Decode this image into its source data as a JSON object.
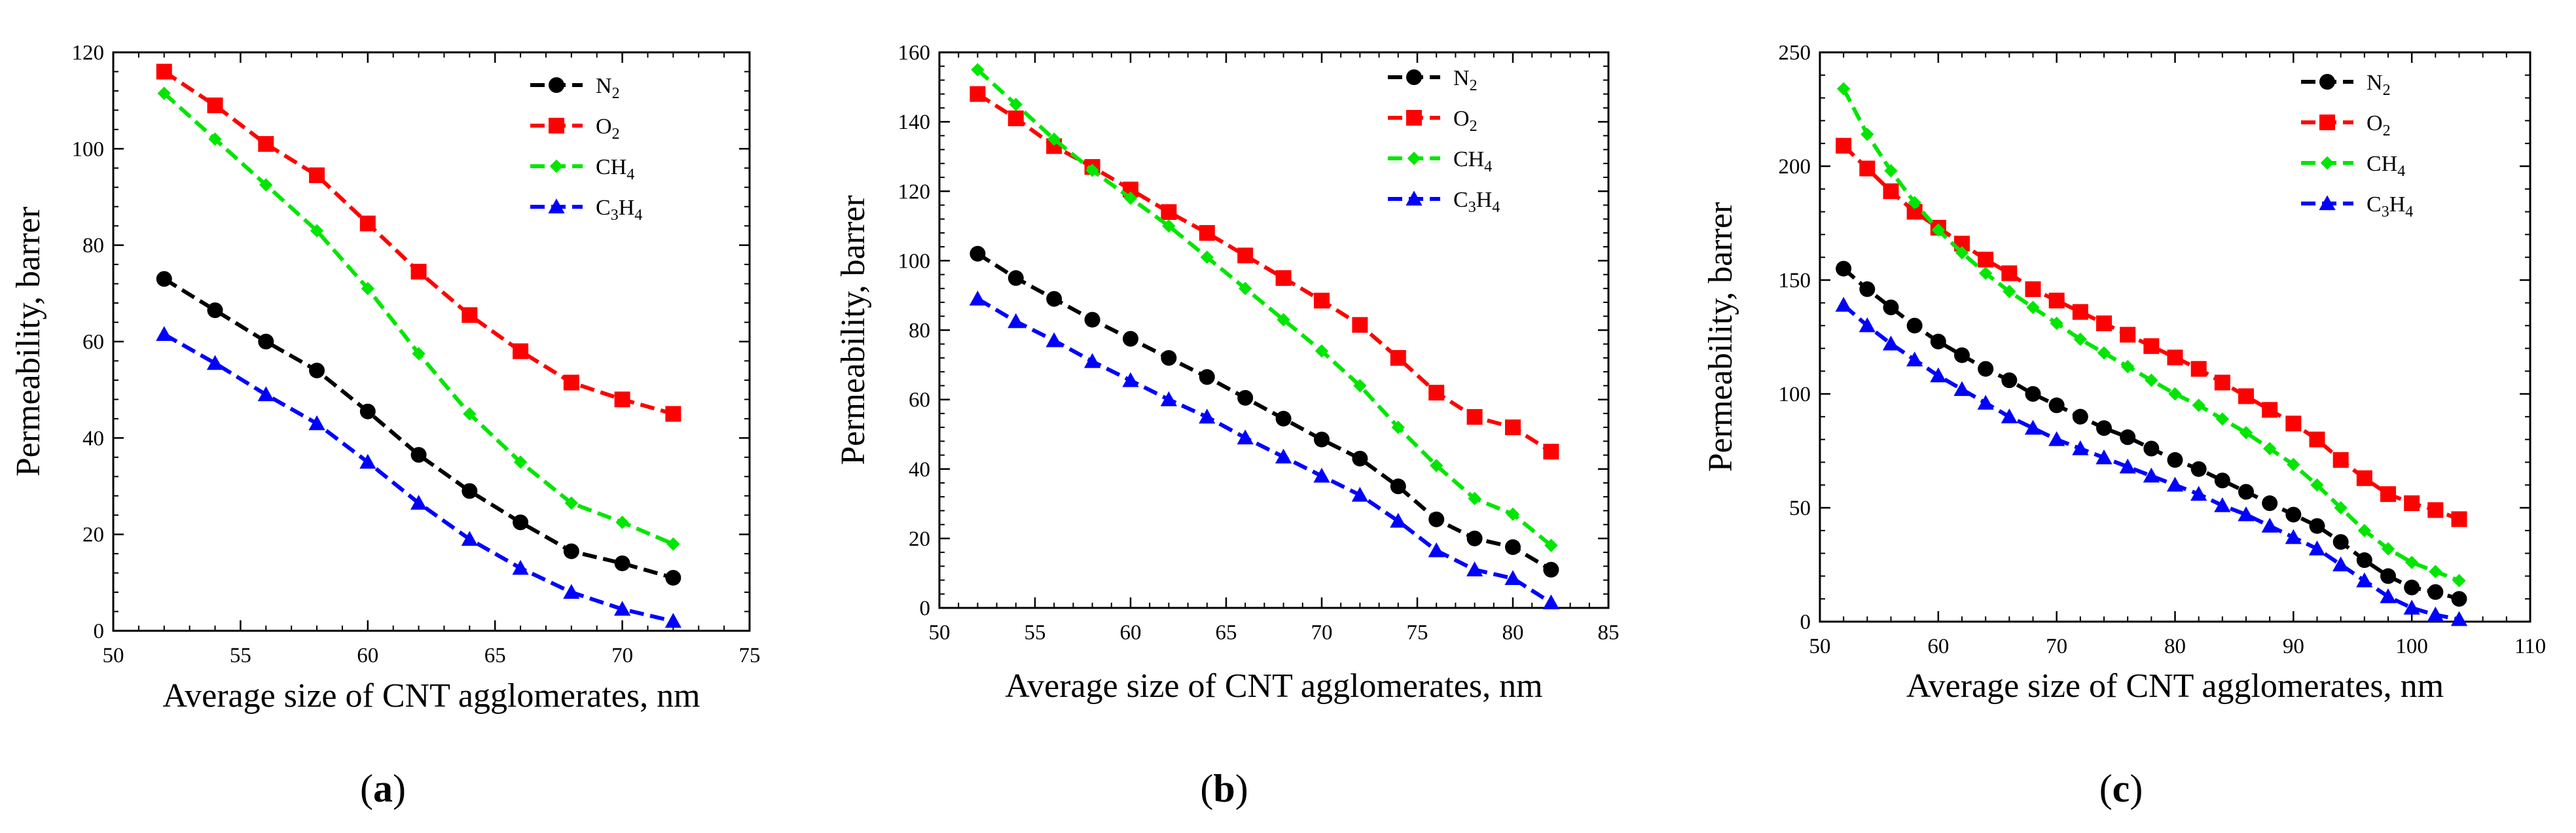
{
  "chart_data": [
    {
      "type": "line",
      "panel_label": "(a)",
      "xlabel": "Average size of CNT agglomerates, nm",
      "ylabel": "Permeability, barrer",
      "xlim": [
        50,
        75
      ],
      "ylim": [
        0,
        120
      ],
      "xticks": [
        50,
        55,
        60,
        65,
        70,
        75
      ],
      "yticks": [
        0,
        20,
        40,
        60,
        80,
        100,
        120
      ],
      "x": [
        52,
        54,
        56,
        58,
        60,
        62,
        64,
        66,
        68,
        70,
        72
      ],
      "legend_position": "top-right",
      "series": [
        {
          "name": "N2",
          "label_main": "N",
          "label_sub": "2",
          "color": "#000000",
          "marker": "circle",
          "values": [
            73,
            66.5,
            60,
            54,
            45.5,
            36.5,
            29,
            22.5,
            16.5,
            14,
            11
          ]
        },
        {
          "name": "O2",
          "label_main": "O",
          "label_sub": "2",
          "color": "#ff0000",
          "marker": "square",
          "values": [
            116,
            109,
            101,
            94.5,
            84.5,
            74.5,
            65.5,
            58,
            51.5,
            48,
            45
          ]
        },
        {
          "name": "CH4",
          "label_main": "CH",
          "label_sub": "4",
          "color": "#00e600",
          "marker": "diamond",
          "values": [
            111.5,
            102,
            92.5,
            83,
            71,
            57.5,
            45,
            35,
            26.5,
            22.5,
            18
          ]
        },
        {
          "name": "C3H4",
          "label_main": "C",
          "label_sub": "3",
          "label_main2": "H",
          "label_sub2": "4",
          "color": "#0000ff",
          "marker": "triangle",
          "values": [
            61.5,
            55.5,
            49,
            43,
            35,
            26.5,
            19,
            13,
            8,
            4.5,
            2
          ]
        }
      ]
    },
    {
      "type": "line",
      "panel_label": "(b)",
      "xlabel": "Average size of CNT agglomerates, nm",
      "ylabel": "Permeability, barrer",
      "xlim": [
        50,
        85
      ],
      "ylim": [
        0,
        160
      ],
      "xticks": [
        50,
        55,
        60,
        65,
        70,
        75,
        80,
        85
      ],
      "yticks": [
        0,
        20,
        40,
        60,
        80,
        100,
        120,
        140,
        160
      ],
      "x": [
        52,
        54,
        56,
        58,
        60,
        62,
        64,
        66,
        68,
        70,
        72,
        74,
        76,
        78,
        80,
        82
      ],
      "legend_position": "top-right",
      "series": [
        {
          "name": "N2",
          "label_main": "N",
          "label_sub": "2",
          "color": "#000000",
          "marker": "circle",
          "values": [
            102,
            95,
            89,
            83,
            77.5,
            72,
            66.5,
            60.5,
            54.5,
            48.5,
            43,
            35,
            25.5,
            20,
            17.5,
            11
          ]
        },
        {
          "name": "O2",
          "label_main": "O",
          "label_sub": "2",
          "color": "#ff0000",
          "marker": "square",
          "values": [
            148,
            141,
            133,
            127,
            120.5,
            114,
            108,
            101.5,
            95,
            88.5,
            81.5,
            72,
            62,
            55,
            52,
            45
          ]
        },
        {
          "name": "CH4",
          "label_main": "CH",
          "label_sub": "4",
          "color": "#00e600",
          "marker": "diamond",
          "values": [
            155,
            145,
            135,
            126,
            118,
            110,
            101,
            92,
            83,
            74,
            64,
            52,
            41,
            31.5,
            27,
            18
          ]
        },
        {
          "name": "C3H4",
          "label_main": "C",
          "label_sub": "3",
          "label_main2": "H",
          "label_sub2": "4",
          "color": "#0000ff",
          "marker": "triangle",
          "values": [
            89,
            82.5,
            77,
            71,
            65.5,
            60,
            55,
            49,
            43.5,
            38,
            32.5,
            25,
            16.5,
            11,
            8.5,
            1.5
          ]
        }
      ]
    },
    {
      "type": "line",
      "panel_label": "(c)",
      "xlabel": "Average size of CNT agglomerates, nm",
      "ylabel": "Permeability, barrer",
      "xlim": [
        50,
        110
      ],
      "ylim": [
        0,
        250
      ],
      "xticks": [
        50,
        60,
        70,
        80,
        90,
        100,
        110
      ],
      "yticks": [
        0,
        50,
        100,
        150,
        200,
        250
      ],
      "x": [
        52,
        54,
        56,
        58,
        60,
        62,
        64,
        66,
        68,
        70,
        72,
        74,
        76,
        78,
        80,
        82,
        84,
        86,
        88,
        90,
        92,
        94,
        96,
        98,
        100,
        102,
        104
      ],
      "legend_position": "top-right",
      "series": [
        {
          "name": "N2",
          "label_main": "N",
          "label_sub": "2",
          "color": "#000000",
          "marker": "circle",
          "values": [
            155,
            146,
            138,
            130,
            123,
            117,
            111,
            106,
            100,
            95,
            90,
            85,
            81,
            76,
            71,
            67,
            62,
            57,
            52,
            47,
            42,
            35,
            27,
            20,
            15,
            13,
            10
          ]
        },
        {
          "name": "O2",
          "label_main": "O",
          "label_sub": "2",
          "color": "#ff0000",
          "marker": "square",
          "values": [
            209,
            199,
            189,
            180,
            173,
            166,
            159,
            153,
            146,
            141,
            136,
            131,
            126,
            121,
            116,
            111,
            105,
            99,
            93,
            87,
            80,
            71,
            63,
            56,
            52,
            49,
            45
          ]
        },
        {
          "name": "CH4",
          "label_main": "CH",
          "label_sub": "4",
          "color": "#00e600",
          "marker": "diamond",
          "values": [
            234,
            214,
            198,
            184,
            172,
            162,
            153,
            145,
            138,
            131,
            124,
            118,
            112,
            106,
            100,
            95,
            89,
            83,
            76,
            69,
            60,
            50,
            40,
            32,
            26,
            22,
            18
          ]
        },
        {
          "name": "C3H4",
          "label_main": "C",
          "label_sub": "3",
          "label_main2": "H",
          "label_sub2": "4",
          "color": "#0000ff",
          "marker": "triangle",
          "values": [
            139,
            130,
            122,
            115,
            108,
            102,
            96,
            90,
            85,
            80,
            76,
            72,
            68,
            64,
            60,
            56,
            51,
            47,
            42,
            37,
            32,
            25,
            18,
            11,
            6,
            3,
            1
          ]
        }
      ]
    }
  ]
}
